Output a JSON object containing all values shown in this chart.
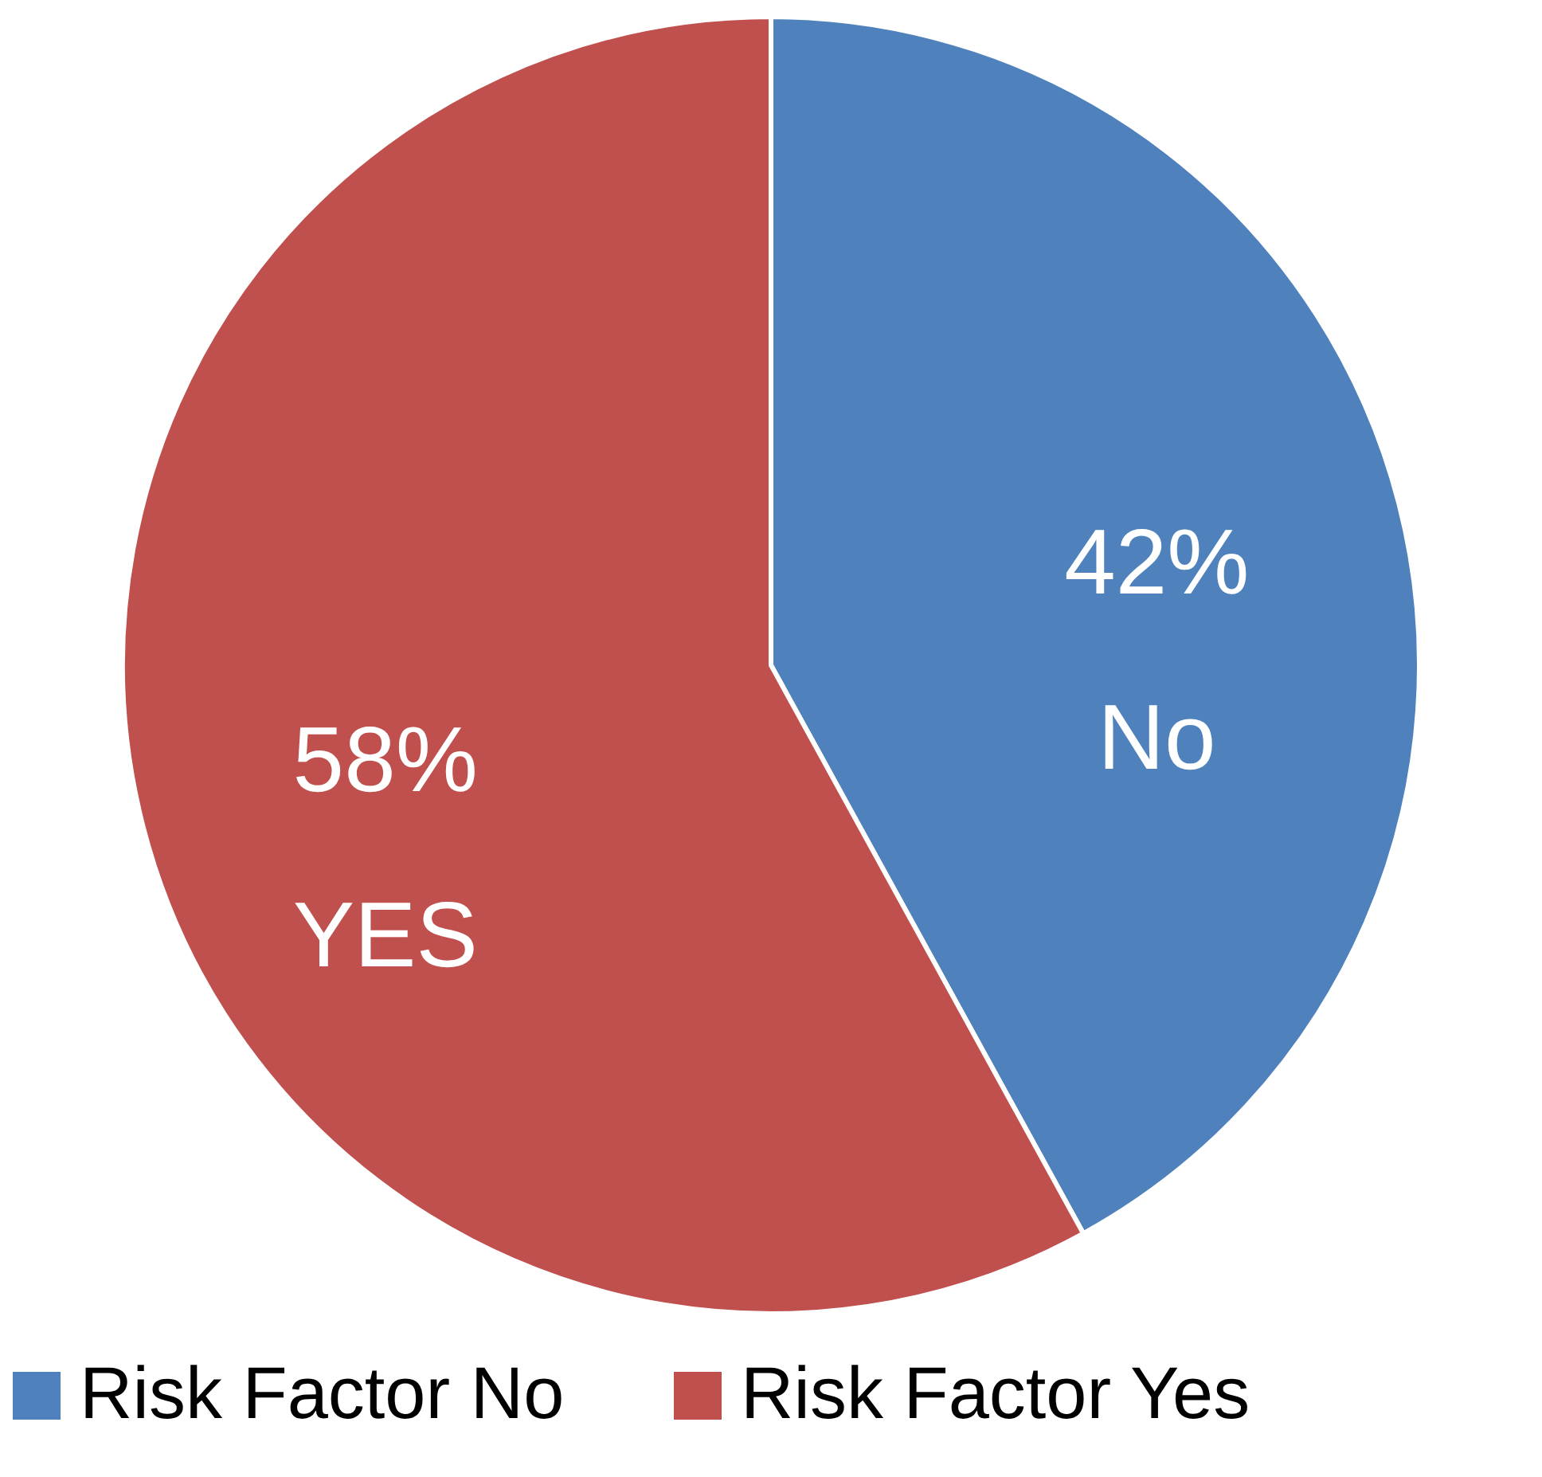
{
  "chart_data": {
    "type": "pie",
    "categories": [
      "Risk Factor No",
      "Risk Factor Yes"
    ],
    "values": [
      42,
      58
    ],
    "colors": [
      "#4f81bd",
      "#c0504d"
    ],
    "value_labels": [
      "42%\nNo",
      "58%\nYES"
    ],
    "legend": "bottom"
  }
}
